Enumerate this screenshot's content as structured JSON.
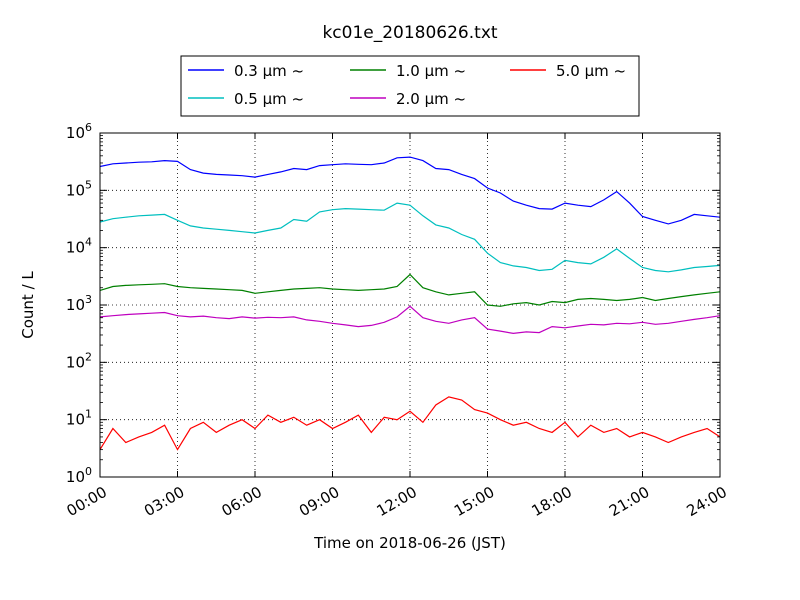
{
  "chart_data": {
    "type": "line",
    "title": "kc01e_20180626.txt",
    "xlabel": "Time on 2018-06-26 (JST)",
    "ylabel": "Count / L",
    "yscale": "log",
    "ylim": [
      1,
      1000000
    ],
    "xlim": [
      "00:00",
      "24:00"
    ],
    "x_ticks": [
      "00:00",
      "03:00",
      "06:00",
      "09:00",
      "12:00",
      "15:00",
      "18:00",
      "21:00",
      "24:00"
    ],
    "y_ticks": [
      {
        "base": "10",
        "exp": "0"
      },
      {
        "base": "10",
        "exp": "1"
      },
      {
        "base": "10",
        "exp": "2"
      },
      {
        "base": "10",
        "exp": "3"
      },
      {
        "base": "10",
        "exp": "4"
      },
      {
        "base": "10",
        "exp": "5"
      },
      {
        "base": "10",
        "exp": "6"
      }
    ],
    "grid": true,
    "legend_position": "top-center",
    "series": [
      {
        "name": "0.3 μm ~",
        "color": "#0000ff",
        "x": [
          "00:00",
          "00:30",
          "01:00",
          "01:30",
          "02:00",
          "02:30",
          "03:00",
          "03:30",
          "04:00",
          "04:30",
          "05:00",
          "05:30",
          "06:00",
          "06:30",
          "07:00",
          "07:30",
          "08:00",
          "08:30",
          "09:00",
          "09:30",
          "10:00",
          "10:30",
          "11:00",
          "11:30",
          "12:00",
          "12:30",
          "13:00",
          "13:30",
          "14:00",
          "14:30",
          "15:00",
          "15:30",
          "16:00",
          "16:30",
          "17:00",
          "17:30",
          "18:00",
          "18:30",
          "19:00",
          "19:30",
          "20:00",
          "20:30",
          "21:00",
          "21:30",
          "22:00",
          "22:30",
          "23:00",
          "23:30",
          "24:00"
        ],
        "values": [
          260000,
          290000,
          300000,
          310000,
          315000,
          330000,
          320000,
          230000,
          200000,
          190000,
          185000,
          180000,
          170000,
          190000,
          210000,
          240000,
          230000,
          270000,
          280000,
          290000,
          285000,
          280000,
          300000,
          370000,
          380000,
          330000,
          240000,
          230000,
          190000,
          160000,
          110000,
          90000,
          65000,
          55000,
          48000,
          47000,
          60000,
          55000,
          52000,
          68000,
          95000,
          60000,
          35000,
          30000,
          26000,
          30000,
          38000,
          36000,
          34000
        ]
      },
      {
        "name": "1.0 μm ~",
        "color": "#008000",
        "x": [
          "00:00",
          "00:30",
          "01:00",
          "01:30",
          "02:00",
          "02:30",
          "03:00",
          "03:30",
          "04:00",
          "04:30",
          "05:00",
          "05:30",
          "06:00",
          "06:30",
          "07:00",
          "07:30",
          "08:00",
          "08:30",
          "09:00",
          "09:30",
          "10:00",
          "10:30",
          "11:00",
          "11:30",
          "12:00",
          "12:30",
          "13:00",
          "13:30",
          "14:00",
          "14:30",
          "15:00",
          "15:30",
          "16:00",
          "16:30",
          "17:00",
          "17:30",
          "18:00",
          "18:30",
          "19:00",
          "19:30",
          "20:00",
          "20:30",
          "21:00",
          "21:30",
          "22:00",
          "22:30",
          "23:00",
          "23:30",
          "24:00"
        ],
        "values": [
          1800,
          2100,
          2200,
          2250,
          2300,
          2350,
          2100,
          2000,
          1950,
          1900,
          1850,
          1800,
          1600,
          1700,
          1800,
          1900,
          1950,
          2000,
          1900,
          1850,
          1800,
          1850,
          1900,
          2100,
          3400,
          2000,
          1700,
          1500,
          1600,
          1700,
          1000,
          950,
          1050,
          1100,
          1000,
          1150,
          1100,
          1250,
          1300,
          1250,
          1200,
          1250,
          1350,
          1200,
          1300,
          1400,
          1500,
          1600,
          1700
        ]
      },
      {
        "name": "5.0 μm ~",
        "color": "#ff0000",
        "x": [
          "00:00",
          "00:30",
          "01:00",
          "01:30",
          "02:00",
          "02:30",
          "03:00",
          "03:30",
          "04:00",
          "04:30",
          "05:00",
          "05:30",
          "06:00",
          "06:30",
          "07:00",
          "07:30",
          "08:00",
          "08:30",
          "09:00",
          "09:30",
          "10:00",
          "10:30",
          "11:00",
          "11:30",
          "12:00",
          "12:30",
          "13:00",
          "13:30",
          "14:00",
          "14:30",
          "15:00",
          "15:30",
          "16:00",
          "16:30",
          "17:00",
          "17:30",
          "18:00",
          "18:30",
          "19:00",
          "19:30",
          "20:00",
          "20:30",
          "21:00",
          "21:30",
          "22:00",
          "22:30",
          "23:00",
          "23:30",
          "24:00"
        ],
        "values": [
          3,
          7,
          4,
          5,
          6,
          8,
          3,
          7,
          9,
          6,
          8,
          10,
          7,
          12,
          9,
          11,
          8,
          10,
          7,
          9,
          12,
          6,
          11,
          10,
          14,
          9,
          18,
          25,
          22,
          15,
          13,
          10,
          8,
          9,
          7,
          6,
          9,
          5,
          8,
          6,
          7,
          5,
          6,
          5,
          4,
          5,
          6,
          7,
          5
        ]
      },
      {
        "name": "0.5 μm ~",
        "color": "#00bfbf",
        "x": [
          "00:00",
          "00:30",
          "01:00",
          "01:30",
          "02:00",
          "02:30",
          "03:00",
          "03:30",
          "04:00",
          "04:30",
          "05:00",
          "05:30",
          "06:00",
          "06:30",
          "07:00",
          "07:30",
          "08:00",
          "08:30",
          "09:00",
          "09:30",
          "10:00",
          "10:30",
          "11:00",
          "11:30",
          "12:00",
          "12:30",
          "13:00",
          "13:30",
          "14:00",
          "14:30",
          "15:00",
          "15:30",
          "16:00",
          "16:30",
          "17:00",
          "17:30",
          "18:00",
          "18:30",
          "19:00",
          "19:30",
          "20:00",
          "20:30",
          "21:00",
          "21:30",
          "22:00",
          "22:30",
          "23:00",
          "23:30",
          "24:00"
        ],
        "values": [
          28000,
          32000,
          34000,
          36000,
          37000,
          38000,
          30000,
          24000,
          22000,
          21000,
          20000,
          19000,
          18000,
          20000,
          22000,
          31000,
          29000,
          42000,
          46000,
          48000,
          47000,
          46000,
          45000,
          60000,
          55000,
          36000,
          25000,
          22000,
          17000,
          14000,
          8000,
          5500,
          4800,
          4500,
          4000,
          4200,
          6000,
          5500,
          5200,
          6800,
          9500,
          6500,
          4500,
          4000,
          3800,
          4100,
          4500,
          4700,
          4900
        ]
      },
      {
        "name": "2.0 μm ~",
        "color": "#bf00bf",
        "x": [
          "00:00",
          "00:30",
          "01:00",
          "01:30",
          "02:00",
          "02:30",
          "03:00",
          "03:30",
          "04:00",
          "04:30",
          "05:00",
          "05:30",
          "06:00",
          "06:30",
          "07:00",
          "07:30",
          "08:00",
          "08:30",
          "09:00",
          "09:30",
          "10:00",
          "10:30",
          "11:00",
          "11:30",
          "12:00",
          "12:30",
          "13:00",
          "13:30",
          "14:00",
          "14:30",
          "15:00",
          "15:30",
          "16:00",
          "16:30",
          "17:00",
          "17:30",
          "18:00",
          "18:30",
          "19:00",
          "19:30",
          "20:00",
          "20:30",
          "21:00",
          "21:30",
          "22:00",
          "22:30",
          "23:00",
          "23:30",
          "24:00"
        ],
        "values": [
          620,
          650,
          680,
          700,
          720,
          740,
          650,
          620,
          640,
          600,
          580,
          620,
          590,
          610,
          600,
          620,
          550,
          520,
          480,
          450,
          420,
          440,
          500,
          620,
          950,
          600,
          520,
          480,
          550,
          600,
          380,
          350,
          320,
          340,
          330,
          420,
          400,
          430,
          460,
          450,
          480,
          470,
          500,
          460,
          480,
          520,
          560,
          600,
          650
        ]
      }
    ]
  }
}
